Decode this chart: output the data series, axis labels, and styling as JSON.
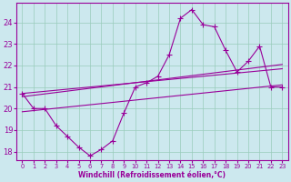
{
  "xlabel": "Windchill (Refroidissement éolien,°C)",
  "bg_color": "#cce8ee",
  "grid_color": "#99ccbb",
  "line_color": "#990099",
  "x_ticks": [
    0,
    1,
    2,
    3,
    4,
    5,
    6,
    7,
    8,
    9,
    10,
    11,
    12,
    13,
    14,
    15,
    16,
    17,
    18,
    19,
    20,
    21,
    22,
    23
  ],
  "y_ticks": [
    18,
    19,
    20,
    21,
    22,
    23,
    24
  ],
  "ylim": [
    17.6,
    24.9
  ],
  "xlim": [
    -0.5,
    23.5
  ],
  "main_series": [
    20.7,
    20.0,
    20.0,
    19.2,
    18.7,
    18.2,
    17.8,
    18.1,
    18.5,
    19.8,
    21.0,
    21.2,
    21.5,
    22.5,
    24.2,
    24.6,
    23.9,
    23.8,
    22.7,
    21.7,
    22.2,
    22.9,
    21.0,
    21.0
  ],
  "trend1_ends": [
    20.7,
    21.85
  ],
  "trend2_ends": [
    20.55,
    22.05
  ],
  "trend3_ends": [
    19.85,
    21.1
  ]
}
